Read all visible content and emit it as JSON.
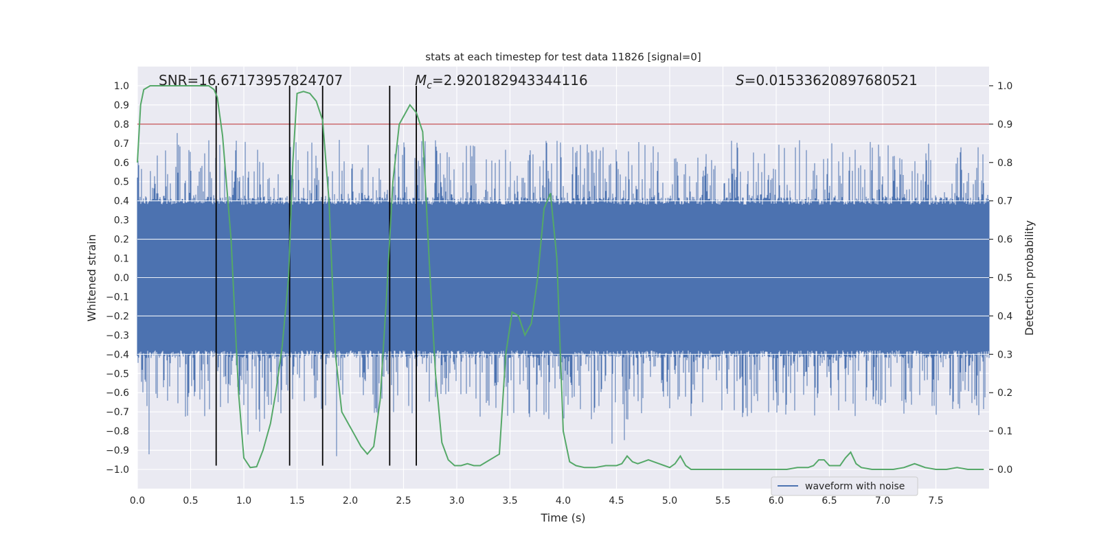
{
  "chart_data": {
    "type": "line",
    "title": "stats at each timestep for test data 11826 [signal=0]",
    "xlabel": "Time (s)",
    "ylabel": "Whitened strain",
    "y2label": "Detection probability",
    "xlim": [
      0,
      8
    ],
    "ylim": [
      -1.1,
      1.1
    ],
    "y2lim": [
      -0.05,
      1.05
    ],
    "x_ticks": [
      0.0,
      0.5,
      1.0,
      1.5,
      2.0,
      2.5,
      3.0,
      3.5,
      4.0,
      4.5,
      5.0,
      5.5,
      6.0,
      6.5,
      7.0,
      7.5
    ],
    "x_tick_labels": [
      "0.0",
      "0.5",
      "1.0",
      "1.5",
      "2.0",
      "2.5",
      "3.0",
      "3.5",
      "4.0",
      "4.5",
      "5.0",
      "5.5",
      "6.0",
      "6.5",
      "7.0",
      "7.5"
    ],
    "y_ticks": [
      -1.0,
      -0.9,
      -0.8,
      -0.7,
      -0.6,
      -0.5,
      -0.4,
      -0.3,
      -0.2,
      -0.1,
      0.0,
      0.1,
      0.2,
      0.3,
      0.4,
      0.5,
      0.6,
      0.7,
      0.8,
      0.9,
      1.0
    ],
    "y_tick_labels": [
      "−1.0",
      "−0.9",
      "−0.8",
      "−0.7",
      "−0.6",
      "−0.5",
      "−0.4",
      "−0.3",
      "−0.2",
      "−0.1",
      "0.0",
      "0.1",
      "0.2",
      "0.3",
      "0.4",
      "0.5",
      "0.6",
      "0.7",
      "0.8",
      "0.9",
      "1.0"
    ],
    "y2_ticks": [
      0.0,
      0.1,
      0.2,
      0.3,
      0.4,
      0.5,
      0.6,
      0.7,
      0.8,
      0.9,
      1.0
    ],
    "y2_tick_labels": [
      "0.0",
      "0.1",
      "0.2",
      "0.3",
      "0.4",
      "0.5",
      "0.6",
      "0.7",
      "0.8",
      "0.9",
      "1.0"
    ],
    "annotations": {
      "snr": "SNR=16.67173957824707",
      "mc_prefix": "M",
      "mc_sub": "c",
      "mc_value": "=2.920182943344116",
      "s_prefix": "S",
      "s_value": "=0.01533620897680521"
    },
    "legend": {
      "label": "waveform with noise",
      "position": "lower-right"
    },
    "threshold": {
      "y2": 0.9,
      "color": "#c44e52"
    },
    "vertical_markers": {
      "x": [
        0.74,
        1.43,
        1.74,
        2.37,
        2.62
      ],
      "ymin": -0.98,
      "ymax": 1.0,
      "color": "#000000"
    },
    "waveform": {
      "name": "waveform with noise",
      "color": "#4c72b0",
      "core_amplitude": 0.38,
      "typical_peak": 0.6,
      "max_peak": 0.85,
      "min_trough": -0.97
    },
    "series": [
      {
        "name": "detection probability",
        "axis": "y2",
        "color": "#55a868",
        "x": [
          0.0,
          0.03,
          0.06,
          0.12,
          0.2,
          0.3,
          0.4,
          0.5,
          0.6,
          0.67,
          0.72,
          0.75,
          0.8,
          0.88,
          0.95,
          1.0,
          1.06,
          1.12,
          1.18,
          1.25,
          1.3,
          1.36,
          1.42,
          1.46,
          1.5,
          1.56,
          1.62,
          1.68,
          1.74,
          1.8,
          1.86,
          1.92,
          1.98,
          2.04,
          2.1,
          2.16,
          2.22,
          2.28,
          2.34,
          2.4,
          2.46,
          2.52,
          2.56,
          2.62,
          2.68,
          2.74,
          2.8,
          2.86,
          2.92,
          2.98,
          3.04,
          3.1,
          3.16,
          3.22,
          3.28,
          3.34,
          3.4,
          3.46,
          3.52,
          3.58,
          3.64,
          3.7,
          3.76,
          3.82,
          3.88,
          3.94,
          4.0,
          4.06,
          4.12,
          4.2,
          4.3,
          4.4,
          4.5,
          4.55,
          4.6,
          4.65,
          4.7,
          4.75,
          4.8,
          4.85,
          4.9,
          4.95,
          5.0,
          5.05,
          5.1,
          5.15,
          5.2,
          5.25,
          5.35,
          5.5,
          5.7,
          5.9,
          6.1,
          6.2,
          6.25,
          6.3,
          6.35,
          6.4,
          6.45,
          6.5,
          6.55,
          6.6,
          6.65,
          6.7,
          6.75,
          6.8,
          6.9,
          7.0,
          7.1,
          7.2,
          7.25,
          7.3,
          7.35,
          7.4,
          7.5,
          7.6,
          7.7,
          7.8,
          7.95
        ],
        "y": [
          0.8,
          0.95,
          0.99,
          1.0,
          1.0,
          1.0,
          1.0,
          1.0,
          1.0,
          1.0,
          0.99,
          0.97,
          0.87,
          0.6,
          0.2,
          0.03,
          0.005,
          0.007,
          0.05,
          0.12,
          0.2,
          0.32,
          0.5,
          0.8,
          0.98,
          0.985,
          0.98,
          0.96,
          0.91,
          0.7,
          0.3,
          0.15,
          0.12,
          0.09,
          0.06,
          0.04,
          0.06,
          0.18,
          0.45,
          0.75,
          0.9,
          0.93,
          0.95,
          0.93,
          0.88,
          0.55,
          0.25,
          0.07,
          0.025,
          0.01,
          0.01,
          0.015,
          0.01,
          0.01,
          0.02,
          0.03,
          0.04,
          0.3,
          0.41,
          0.4,
          0.35,
          0.38,
          0.5,
          0.68,
          0.72,
          0.55,
          0.1,
          0.02,
          0.01,
          0.005,
          0.005,
          0.01,
          0.01,
          0.015,
          0.035,
          0.02,
          0.015,
          0.02,
          0.025,
          0.02,
          0.015,
          0.01,
          0.005,
          0.015,
          0.035,
          0.01,
          0.0,
          0.0,
          0.0,
          0.0,
          0.0,
          0.0,
          0.0,
          0.005,
          0.005,
          0.005,
          0.01,
          0.025,
          0.025,
          0.01,
          0.01,
          0.01,
          0.03,
          0.045,
          0.015,
          0.005,
          0.0,
          0.0,
          0.0,
          0.005,
          0.01,
          0.015,
          0.01,
          0.005,
          0.0,
          0.0,
          0.005,
          0.0,
          0.0
        ]
      }
    ]
  }
}
